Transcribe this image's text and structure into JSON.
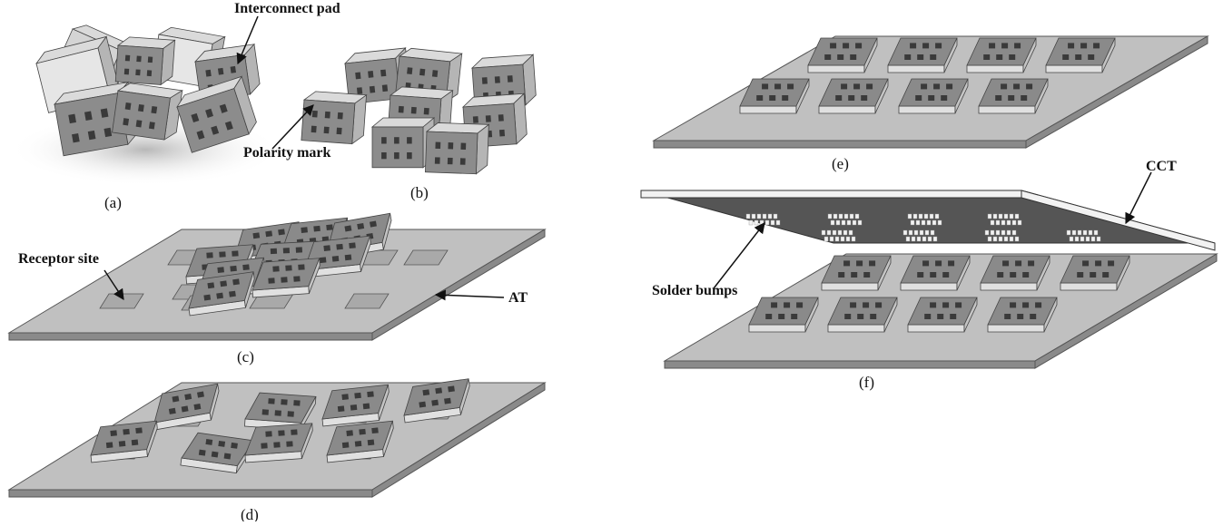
{
  "annotations": {
    "interconnect_pad": "Interconnect pad",
    "polarity_mark": "Polarity mark",
    "receptor_site": "Receptor site",
    "at": "AT",
    "cct": "CCT",
    "solder_bumps": "Solder bumps"
  },
  "captions": {
    "a": "(a)",
    "b": "(b)",
    "c": "(c)",
    "d": "(d)",
    "e": "(e)",
    "f": "(f)"
  },
  "colors": {
    "plate": "#c0c0c0",
    "plate_edge": "#8a8a8a",
    "plate_outline": "#555555",
    "chip_top": "#8c8c8c",
    "chip_side": "#e2e2e2",
    "pad": "#3a3a3a",
    "cct_plate": "#555555",
    "cct_edge": "#f2f2f2",
    "receptor": "#a9a9a9"
  }
}
